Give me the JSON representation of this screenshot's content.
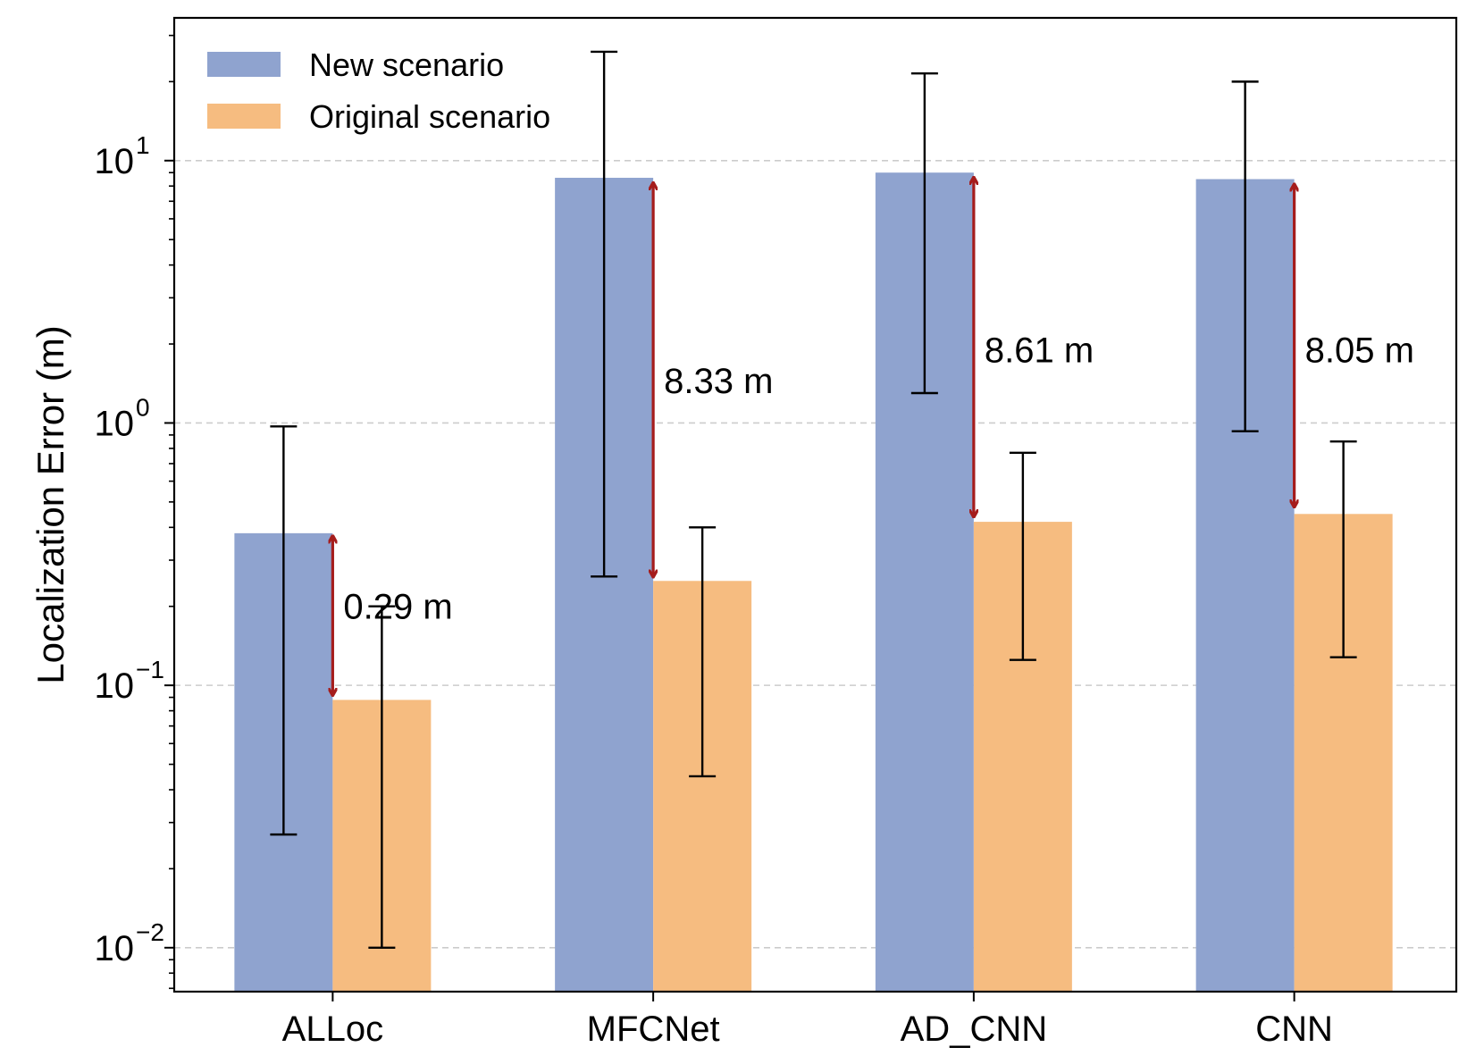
{
  "chart_data": {
    "type": "bar",
    "yscale": "log",
    "ylabel": "Localization Error (m)",
    "xlabel": "",
    "ylim": [
      0.0068,
      35
    ],
    "yticks": [
      {
        "value": 0.01,
        "base": "10",
        "exp": "−2"
      },
      {
        "value": 0.1,
        "base": "10",
        "exp": "−1"
      },
      {
        "value": 1,
        "base": "10",
        "exp": "0"
      },
      {
        "value": 10,
        "base": "10",
        "exp": "1"
      }
    ],
    "grid": "horizontal dashed at major ticks",
    "legend": "top-left",
    "categories": [
      "ALLoc",
      "MFCNet",
      "AD_CNN",
      "CNN"
    ],
    "series": [
      {
        "name": "New scenario",
        "color": "#8fa3cf",
        "values": [
          0.38,
          8.6,
          9.0,
          8.5
        ],
        "err_low": [
          0.027,
          0.26,
          1.3,
          0.93
        ],
        "err_high": [
          0.97,
          26,
          21.5,
          20
        ]
      },
      {
        "name": "Original scenario",
        "color": "#f6bc80",
        "values": [
          0.088,
          0.25,
          0.42,
          0.45
        ],
        "err_low": [
          0.01,
          0.045,
          0.125,
          0.128
        ],
        "err_high": [
          0.2,
          0.4,
          0.77,
          0.85
        ]
      }
    ],
    "annotations": [
      {
        "category": "ALLoc",
        "label": "0.29 m",
        "from": 0.37,
        "to": 0.092,
        "text_at": 0.2
      },
      {
        "category": "MFCNet",
        "label": "8.33 m",
        "from": 8.2,
        "to": 0.26,
        "text_at": 1.45
      },
      {
        "category": "AD_CNN",
        "label": "8.61 m",
        "from": 8.6,
        "to": 0.44,
        "text_at": 1.9
      },
      {
        "category": "CNN",
        "label": "8.05 m",
        "from": 8.1,
        "to": 0.48,
        "text_at": 1.9
      }
    ],
    "annotation_color": "#a51c1c"
  }
}
